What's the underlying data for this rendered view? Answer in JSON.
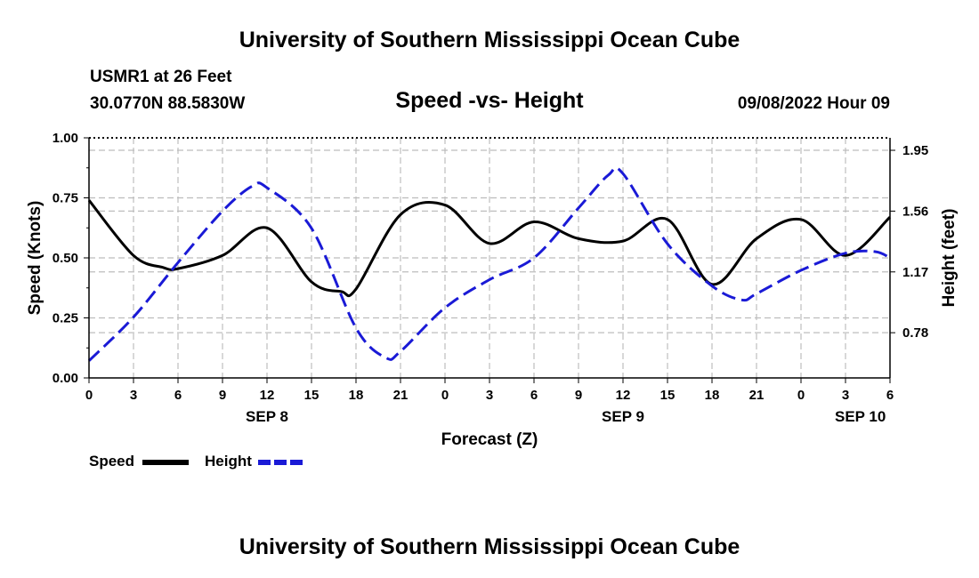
{
  "header": {
    "title": "University of Southern Mississippi Ocean Cube",
    "station": "USMR1 at 26 Feet",
    "coords": "30.0770N  88.5830W",
    "datetime": "09/08/2022 Hour 09"
  },
  "footer": {
    "title": "University of Southern Mississippi Ocean Cube"
  },
  "legend": {
    "speed_label": "Speed",
    "height_label": "Height"
  },
  "chart_data": {
    "type": "line",
    "title": "Speed -vs- Height",
    "xlabel": "Forecast (Z)",
    "ylabel_left": "Speed (Knots)",
    "ylabel_right": "Height (feet)",
    "x_range_hours": [
      0,
      54
    ],
    "x_tick_labels": [
      "0",
      "3",
      "6",
      "9",
      "12",
      "15",
      "18",
      "21",
      "0",
      "3",
      "6",
      "9",
      "12",
      "15",
      "18",
      "21",
      "0",
      "3",
      "6"
    ],
    "day_labels": [
      {
        "label": "SEP 8",
        "hour": 12
      },
      {
        "label": "SEP 9",
        "hour": 36
      },
      {
        "label": "SEP 10",
        "hour": 52
      }
    ],
    "ylim_left": [
      0,
      1.0
    ],
    "yticks_left": [
      "0.00",
      "0.25",
      "0.50",
      "0.75",
      "1.00"
    ],
    "ylim_right": [
      0.49,
      2.03
    ],
    "yticks_right": [
      "0.78",
      "1.17",
      "1.56",
      "1.95"
    ],
    "grid": true,
    "colors": {
      "speed": "#000000",
      "height": "#1a1ad6",
      "grid": "#bdbdbd"
    },
    "series": [
      {
        "name": "Speed",
        "axis": "left",
        "style": "solid",
        "x": [
          0,
          3,
          5,
          6,
          9,
          12,
          15,
          17,
          18,
          21,
          24,
          27,
          30,
          33,
          36,
          39,
          42,
          45,
          48,
          51,
          54
        ],
        "values": [
          0.74,
          0.51,
          0.46,
          0.455,
          0.51,
          0.625,
          0.4,
          0.36,
          0.37,
          0.68,
          0.72,
          0.56,
          0.65,
          0.58,
          0.57,
          0.66,
          0.39,
          0.58,
          0.66,
          0.51,
          0.67
        ]
      },
      {
        "name": "Height",
        "axis": "right",
        "style": "dashed",
        "x": [
          0,
          3,
          6,
          9,
          11,
          12,
          15,
          18,
          20,
          21,
          24,
          27,
          30,
          33,
          35,
          36,
          39,
          42,
          44,
          45,
          48,
          51,
          53,
          54
        ],
        "values": [
          0.6,
          0.88,
          1.23,
          1.56,
          1.72,
          1.71,
          1.45,
          0.81,
          0.62,
          0.66,
          0.94,
          1.12,
          1.26,
          1.58,
          1.79,
          1.8,
          1.35,
          1.08,
          0.99,
          1.03,
          1.18,
          1.29,
          1.3,
          1.26
        ]
      }
    ]
  }
}
